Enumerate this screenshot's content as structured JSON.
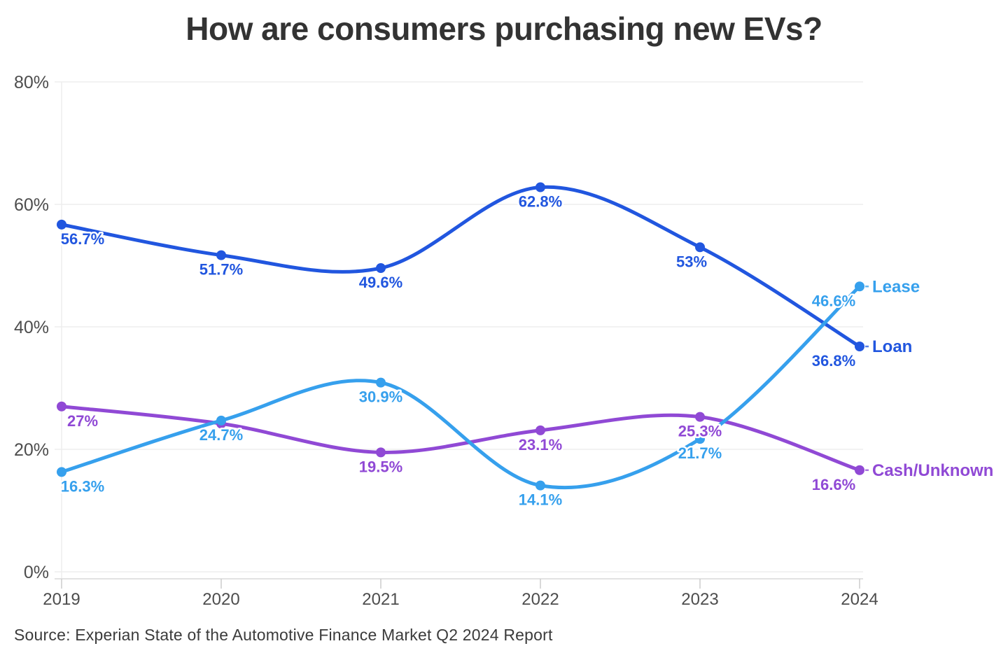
{
  "page": {
    "title": "How are consumers purchasing new EVs?",
    "source": "Source: Experian State of the Automotive Finance Market Q2 2024 Report"
  },
  "chart_data": {
    "type": "line",
    "title": "How are consumers purchasing new EVs?",
    "x_labels": [
      "2019",
      "2020",
      "2021",
      "2022",
      "2023",
      "2024"
    ],
    "ylim": [
      0,
      80
    ],
    "yticks": [
      0,
      20,
      40,
      60,
      80
    ],
    "ytick_labels": [
      "0%",
      "20%",
      "40%",
      "60%",
      "80%"
    ],
    "grid": true,
    "legend_position": "line-end",
    "series": [
      {
        "name": "Lease",
        "color": "#36a0ed",
        "values": [
          16.3,
          24.7,
          30.9,
          14.1,
          21.7,
          46.6
        ],
        "point_labels": [
          "16.3%",
          "24.7%",
          "30.9%",
          "14.1%",
          "21.7%",
          "46.6%"
        ]
      },
      {
        "name": "Loan",
        "color": "#2156df",
        "values": [
          56.7,
          51.7,
          49.6,
          62.8,
          53,
          36.8
        ],
        "point_labels": [
          "56.7%",
          "51.7%",
          "49.6%",
          "62.8%",
          "53%",
          "36.8%"
        ]
      },
      {
        "name": "Cash/Unknown",
        "color": "#9049d5",
        "values": [
          27,
          24.2,
          19.5,
          23.1,
          25.3,
          16.6
        ],
        "point_labels": [
          "27%",
          "",
          "19.5%",
          "23.1%",
          "25.3%",
          "16.6%"
        ]
      }
    ],
    "source": "Source: Experian State of the Automotive Finance Market Q2 2024 Report"
  }
}
